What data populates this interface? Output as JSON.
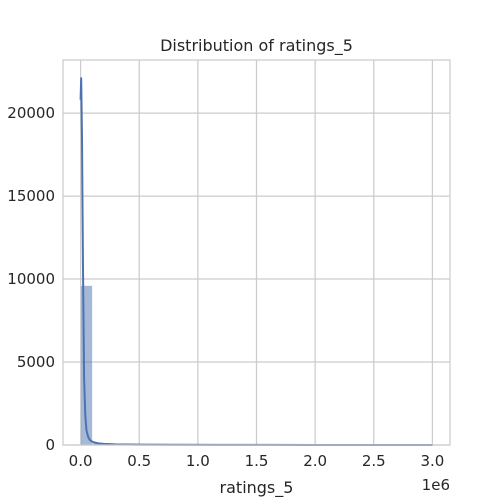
{
  "chart_data": {
    "type": "bar",
    "title": "Distribution of ratings_5",
    "xlabel": "ratings_5",
    "ylabel": "",
    "x_offset_label": "1e6",
    "xlim": [
      -0.15,
      3.15
    ],
    "ylim": [
      0,
      23200
    ],
    "x_ticks": [
      0.0,
      0.5,
      1.0,
      1.5,
      2.0,
      2.5,
      3.0
    ],
    "x_tick_labels": [
      "0.0",
      "0.5",
      "1.0",
      "1.5",
      "2.0",
      "2.5",
      "3.0"
    ],
    "y_ticks": [
      0,
      5000,
      10000,
      15000,
      20000
    ],
    "y_tick_labels": [
      "0",
      "5000",
      "10000",
      "15000",
      "20000"
    ],
    "grid": true,
    "legend": false,
    "bar_color": "#4C72B0",
    "bar_alpha": 0.5,
    "kde_color": "#4C72B0",
    "bin_width": 0.1,
    "bins": [
      {
        "x0": 0.0,
        "x1": 0.1,
        "count": 9600
      },
      {
        "x0": 0.1,
        "x1": 0.2,
        "count": 110
      },
      {
        "x0": 0.2,
        "x1": 0.3,
        "count": 40
      },
      {
        "x0": 0.3,
        "x1": 0.4,
        "count": 20
      },
      {
        "x0": 0.4,
        "x1": 0.5,
        "count": 12
      },
      {
        "x0": 0.5,
        "x1": 0.6,
        "count": 8
      },
      {
        "x0": 0.6,
        "x1": 0.7,
        "count": 6
      },
      {
        "x0": 0.7,
        "x1": 0.8,
        "count": 4
      },
      {
        "x0": 0.8,
        "x1": 0.9,
        "count": 4
      },
      {
        "x0": 0.9,
        "x1": 1.0,
        "count": 3
      },
      {
        "x0": 1.0,
        "x1": 1.1,
        "count": 3
      },
      {
        "x0": 1.1,
        "x1": 1.2,
        "count": 2
      },
      {
        "x0": 1.2,
        "x1": 1.3,
        "count": 2
      },
      {
        "x0": 1.3,
        "x1": 1.4,
        "count": 1
      },
      {
        "x0": 1.4,
        "x1": 1.5,
        "count": 1
      },
      {
        "x0": 1.5,
        "x1": 1.6,
        "count": 1
      },
      {
        "x0": 1.6,
        "x1": 1.7,
        "count": 1
      },
      {
        "x0": 1.7,
        "x1": 1.8,
        "count": 1
      },
      {
        "x0": 1.8,
        "x1": 1.9,
        "count": 1
      },
      {
        "x0": 1.9,
        "x1": 2.0,
        "count": 1
      },
      {
        "x0": 2.0,
        "x1": 2.1,
        "count": 1
      },
      {
        "x0": 2.1,
        "x1": 2.2,
        "count": 1
      },
      {
        "x0": 2.2,
        "x1": 2.3,
        "count": 1
      },
      {
        "x0": 2.3,
        "x1": 2.4,
        "count": 1
      },
      {
        "x0": 2.4,
        "x1": 2.5,
        "count": 1
      },
      {
        "x0": 2.5,
        "x1": 2.6,
        "count": 1
      },
      {
        "x0": 2.6,
        "x1": 2.7,
        "count": 1
      },
      {
        "x0": 2.7,
        "x1": 2.8,
        "count": 1
      },
      {
        "x0": 2.8,
        "x1": 2.9,
        "count": 1
      },
      {
        "x0": 2.9,
        "x1": 3.0,
        "count": 1
      }
    ],
    "kde": {
      "x": [
        0.0,
        0.005,
        0.012,
        0.02,
        0.03,
        0.04,
        0.05,
        0.06,
        0.07,
        0.08,
        0.1,
        0.12,
        0.15,
        0.2,
        0.3,
        0.5,
        0.8,
        1.2,
        1.6,
        2.0,
        2.5,
        3.0
      ],
      "y": [
        20800,
        22100,
        18500,
        11000,
        4000,
        1800,
        900,
        600,
        400,
        300,
        200,
        150,
        100,
        70,
        40,
        25,
        15,
        8,
        5,
        3,
        2,
        1
      ]
    }
  }
}
